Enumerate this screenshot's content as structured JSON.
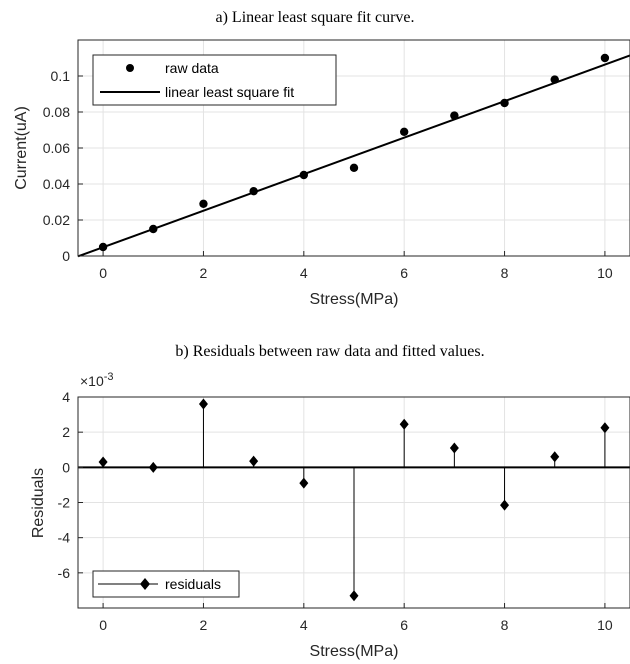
{
  "chart_data": [
    {
      "type": "scatter",
      "title": "a) Linear least square fit curve.",
      "xlabel": "Stress(MPa)",
      "ylabel": "Current(uA)",
      "xlim": [
        -0.5,
        10.5
      ],
      "ylim": [
        0,
        0.12
      ],
      "xticks": [
        "0",
        "2",
        "4",
        "6",
        "8",
        "10"
      ],
      "yticks": [
        "0",
        "0.02",
        "0.04",
        "0.06",
        "0.08",
        "0.1"
      ],
      "grid": true,
      "legend_position": "top-left",
      "series": [
        {
          "name": "raw data",
          "kind": "markers",
          "x": [
            0,
            1,
            2,
            3,
            4,
            5,
            6,
            7,
            8,
            9,
            10
          ],
          "y": [
            0.005,
            0.015,
            0.029,
            0.036,
            0.045,
            0.049,
            0.069,
            0.078,
            0.085,
            0.098,
            0.11
          ]
        },
        {
          "name": "linear least square fit",
          "kind": "line",
          "x": [
            -0.5,
            10.5
          ],
          "y": [
            -0.0002,
            0.1114
          ]
        }
      ]
    },
    {
      "type": "stem",
      "title": "b) Residuals between raw data and fitted values.",
      "xlabel": "Stress(MPa)",
      "ylabel": "Residuals",
      "exponent_label": "×10",
      "exponent_power": "-3",
      "xlim": [
        -0.5,
        10.5
      ],
      "ylim": [
        -8,
        4
      ],
      "xticks": [
        "0",
        "2",
        "4",
        "6",
        "8",
        "10"
      ],
      "yticks": [
        "-6",
        "-4",
        "-2",
        "0",
        "2",
        "4"
      ],
      "grid": true,
      "legend_position": "bottom-left",
      "series": [
        {
          "name": "residuals",
          "x": [
            0,
            1,
            2,
            3,
            4,
            5,
            6,
            7,
            8,
            9,
            10
          ],
          "y": [
            0.3,
            0.0,
            3.6,
            0.35,
            -0.9,
            -7.3,
            2.45,
            1.1,
            -2.15,
            0.6,
            2.25
          ]
        }
      ]
    }
  ]
}
